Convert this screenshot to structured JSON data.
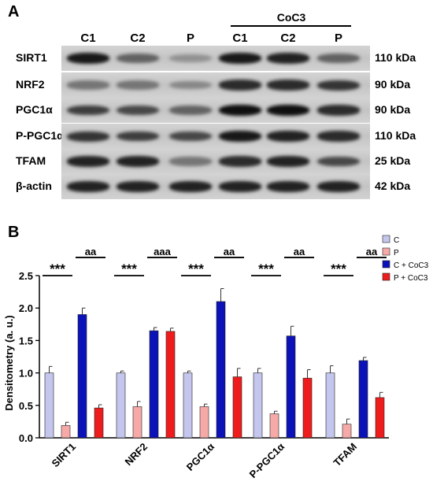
{
  "panel_a": {
    "letter": "A",
    "group_label": "CoC3",
    "lanes": [
      "C1",
      "C2",
      "P",
      "C1",
      "C2",
      "P"
    ],
    "blots": [
      {
        "label": "SIRT1",
        "mw": "110 kDa",
        "intensity": [
          0.95,
          0.55,
          0.3,
          0.95,
          0.9,
          0.55
        ]
      },
      {
        "label": "NRF2",
        "mw": "90 kDa",
        "intensity": [
          0.45,
          0.45,
          0.35,
          0.85,
          0.85,
          0.8
        ]
      },
      {
        "label": "PGC1α",
        "mw": "90 kDa",
        "intensity": [
          0.75,
          0.7,
          0.55,
          1.0,
          1.0,
          0.85
        ]
      },
      {
        "label": "P-PGC1α",
        "mw": "110 kDa",
        "intensity": [
          0.8,
          0.75,
          0.7,
          0.95,
          0.9,
          0.85
        ]
      },
      {
        "label": "TFAM",
        "mw": "25 kDa",
        "intensity": [
          0.9,
          0.9,
          0.45,
          0.85,
          0.9,
          0.7
        ]
      },
      {
        "label": "β-actin",
        "mw": "42 kDa",
        "intensity": [
          0.9,
          0.9,
          0.9,
          0.9,
          0.9,
          0.9
        ]
      }
    ]
  },
  "chart_data": {
    "type": "bar",
    "panel_letter": "B",
    "categories": [
      "SIRT1",
      "NRF2",
      "PGC1α",
      "P-PGC1α",
      "TFAM"
    ],
    "ylabel": "Densitometry (a. u.)",
    "ylim": [
      0,
      2.5
    ],
    "yticks": [
      "0.0",
      "0.5",
      "1.0",
      "1.5",
      "2.0",
      "2.5"
    ],
    "legend_position": "top-right",
    "series": [
      {
        "name": "C",
        "color": "#c4c6ee",
        "values": [
          1.0,
          1.0,
          1.0,
          1.0,
          1.0
        ],
        "errors": [
          0.1,
          0.03,
          0.03,
          0.07,
          0.11
        ]
      },
      {
        "name": "P",
        "color": "#f5aaa8",
        "values": [
          0.19,
          0.48,
          0.48,
          0.37,
          0.21
        ],
        "errors": [
          0.05,
          0.08,
          0.04,
          0.04,
          0.08
        ]
      },
      {
        "name": "C + CoC3",
        "color": "#0b12b8",
        "values": [
          1.9,
          1.65,
          2.1,
          1.57,
          1.19
        ],
        "errors": [
          0.1,
          0.05,
          0.2,
          0.15,
          0.05
        ]
      },
      {
        "name": "P + CoC3",
        "color": "#ee1c1c",
        "values": [
          0.46,
          1.64,
          0.94,
          0.92,
          0.62
        ],
        "errors": [
          0.05,
          0.05,
          0.13,
          0.13,
          0.08
        ]
      }
    ],
    "annotations": [
      {
        "category": 0,
        "from": 0,
        "to": 1,
        "label": "***",
        "y": 2.5
      },
      {
        "category": 0,
        "from": 2,
        "to": 3,
        "label": "aa",
        "y": 2.78
      },
      {
        "category": 1,
        "from": 0,
        "to": 1,
        "label": "***",
        "y": 2.5
      },
      {
        "category": 1,
        "from": 2,
        "to": 3,
        "label": "aaa",
        "y": 2.78
      },
      {
        "category": 2,
        "from": 0,
        "to": 1,
        "label": "***",
        "y": 2.5
      },
      {
        "category": 2,
        "from": 2,
        "to": 3,
        "label": "aa",
        "y": 2.78
      },
      {
        "category": 3,
        "from": 0,
        "to": 1,
        "label": "***",
        "y": 2.5
      },
      {
        "category": 3,
        "from": 2,
        "to": 3,
        "label": "aa",
        "y": 2.78
      },
      {
        "category": 4,
        "from": 0,
        "to": 1,
        "label": "***",
        "y": 2.5
      },
      {
        "category": 4,
        "from": 2,
        "to": 3,
        "label": "aa",
        "y": 2.78
      }
    ]
  }
}
